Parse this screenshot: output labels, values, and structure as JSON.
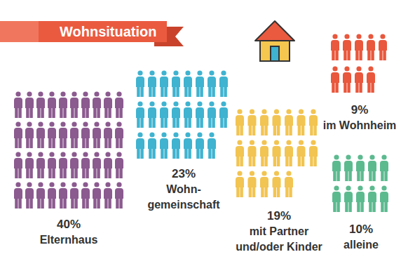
{
  "chart_data": {
    "type": "pictogram",
    "title": "Wohnsituation",
    "categories": [
      "Elternhaus",
      "Wohn-\ngemeinschaft",
      "mit Partner\nund/oder Kinder",
      "im Wohnheim",
      "alleine"
    ],
    "values": [
      40,
      23,
      19,
      9,
      10
    ],
    "value_labels": [
      "40%",
      "23%",
      "19%",
      "9%",
      "10%"
    ],
    "colors": [
      "#8b5a8f",
      "#3fb3d0",
      "#f2c451",
      "#e9573c",
      "#5cba8f"
    ],
    "data_labels": true
  }
}
